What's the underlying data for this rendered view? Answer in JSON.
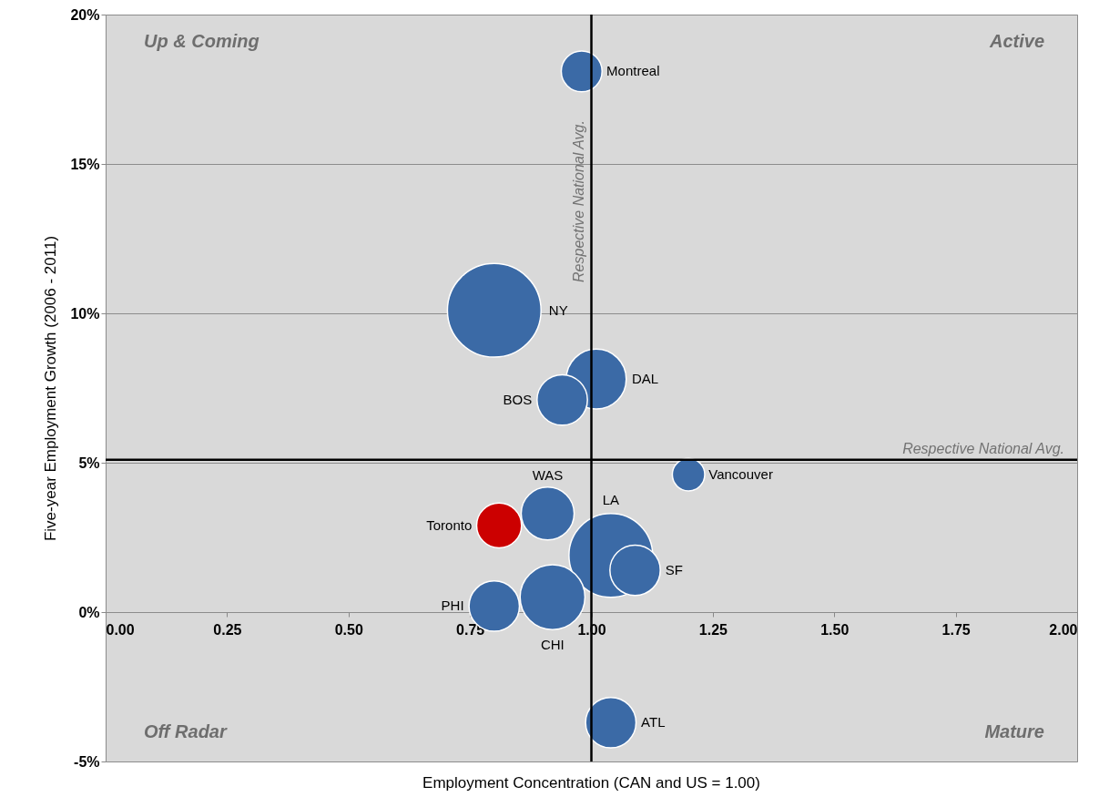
{
  "chart_data": {
    "type": "bubble",
    "xlabel": "Employment Concentration (CAN and US = 1.00)",
    "ylabel": "Five-year Employment Growth (2006 - 2011)",
    "xlim": [
      0,
      2
    ],
    "xticks": [
      {
        "value": 0,
        "label": "0.00"
      },
      {
        "value": 0.25,
        "label": "0.25"
      },
      {
        "value": 0.5,
        "label": "0.50"
      },
      {
        "value": 0.75,
        "label": "0.75"
      },
      {
        "value": 1,
        "label": "1.00"
      },
      {
        "value": 1.25,
        "label": "1.25"
      },
      {
        "value": 1.5,
        "label": "1.50"
      },
      {
        "value": 1.75,
        "label": "1.75"
      },
      {
        "value": 2,
        "label": "2.00"
      }
    ],
    "ylim": [
      -5,
      20
    ],
    "yticks": [
      {
        "value": -5,
        "label": "-5%"
      },
      {
        "value": 0,
        "label": "0%"
      },
      {
        "value": 5,
        "label": "5%"
      },
      {
        "value": 10,
        "label": "10%"
      },
      {
        "value": 15,
        "label": "15%"
      },
      {
        "value": 20,
        "label": "20%"
      }
    ],
    "grid": "y",
    "ref_lines": [
      {
        "axis": "x",
        "value": 1.0,
        "label": "Respective National Avg."
      },
      {
        "axis": "y",
        "value": 5.1,
        "label": "Respective National Avg."
      }
    ],
    "annotations": [
      "Up & Coming",
      "Active",
      "Off Radar",
      "Mature"
    ],
    "series": [
      {
        "name": "Montreal",
        "color": "#3b6aa6",
        "x": [
          0.98
        ],
        "values": [
          18.1
        ],
        "sizes": [
          0.19
        ]
      },
      {
        "name": "NY",
        "color": "#3b6aa6",
        "x": [
          0.8
        ],
        "values": [
          10.1
        ],
        "sizes": [
          1
        ]
      },
      {
        "name": "DAL",
        "color": "#3b6aa6",
        "x": [
          1.01
        ],
        "values": [
          7.8
        ],
        "sizes": [
          0.41
        ]
      },
      {
        "name": "BOS",
        "color": "#3b6aa6",
        "x": [
          0.94
        ],
        "values": [
          7.1
        ],
        "sizes": [
          0.29
        ]
      },
      {
        "name": "Vancouver",
        "color": "#3b6aa6",
        "x": [
          1.2
        ],
        "values": [
          4.6
        ],
        "sizes": [
          0.12
        ]
      },
      {
        "name": "WAS",
        "color": "#3b6aa6",
        "x": [
          0.91
        ],
        "values": [
          3.3
        ],
        "sizes": [
          0.32
        ]
      },
      {
        "name": "Toronto",
        "color": "#cc0000",
        "x": [
          0.81
        ],
        "values": [
          2.9
        ],
        "sizes": [
          0.23
        ]
      },
      {
        "name": "LA",
        "color": "#3b6aa6",
        "x": [
          1.04
        ],
        "values": [
          1.9
        ],
        "sizes": [
          0.8
        ]
      },
      {
        "name": "SF",
        "color": "#3b6aa6",
        "x": [
          1.09
        ],
        "values": [
          1.4
        ],
        "sizes": [
          0.29
        ]
      },
      {
        "name": "CHI",
        "color": "#3b6aa6",
        "x": [
          0.92
        ],
        "values": [
          0.5
        ],
        "sizes": [
          0.48
        ]
      },
      {
        "name": "PHI",
        "color": "#3b6aa6",
        "x": [
          0.8
        ],
        "values": [
          0.2
        ],
        "sizes": [
          0.29
        ]
      },
      {
        "name": "ATL",
        "color": "#3b6aa6",
        "x": [
          1.04
        ],
        "values": [
          -3.7
        ],
        "sizes": [
          0.29
        ]
      }
    ]
  }
}
